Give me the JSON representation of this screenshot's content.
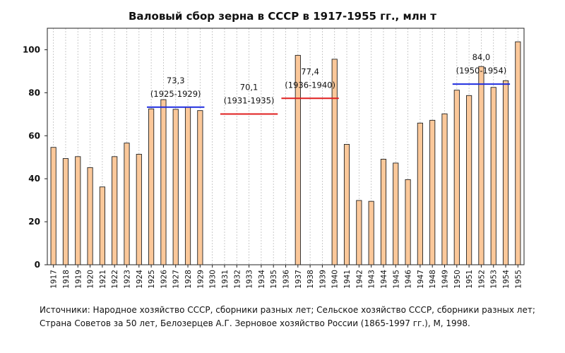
{
  "chart_data": {
    "type": "bar",
    "title": "Валовый сбор зерна в СССР в 1917-1955 гг., млн т",
    "xlabel": "",
    "ylabel": "",
    "ylim": [
      0,
      110
    ],
    "yticks": [
      0,
      20,
      40,
      60,
      80,
      100
    ],
    "grid": "vertical dashed",
    "categories": [
      "1917",
      "1918",
      "1919",
      "1920",
      "1921",
      "1922",
      "1923",
      "1924",
      "1925",
      "1926",
      "1927",
      "1928",
      "1929",
      "1930",
      "1931",
      "1932",
      "1933",
      "1934",
      "1935",
      "1936",
      "1937",
      "1938",
      "1939",
      "1940",
      "1941",
      "1942",
      "1943",
      "1944",
      "1945",
      "1946",
      "1947",
      "1948",
      "1949",
      "1950",
      "1951",
      "1952",
      "1953",
      "1954",
      "1955"
    ],
    "values": [
      54.6,
      49.4,
      50.3,
      45.2,
      36.2,
      50.3,
      56.6,
      51.4,
      72.5,
      76.8,
      72.3,
      73.3,
      71.7,
      null,
      null,
      null,
      null,
      null,
      null,
      null,
      97.4,
      null,
      null,
      95.6,
      56.0,
      29.9,
      29.5,
      49.1,
      47.3,
      39.6,
      65.9,
      67.2,
      70.2,
      81.2,
      78.7,
      92.2,
      82.5,
      85.6,
      103.7
    ],
    "bar_color": "#fbc89a",
    "averages": [
      {
        "value": 73.3,
        "from": "1925",
        "to": "1929",
        "label_value": "73,3",
        "label_period": "(1925-1929)",
        "color": "#1f2de0"
      },
      {
        "value": 70.1,
        "from": "1931",
        "to": "1935",
        "label_value": "70,1",
        "label_period": "(1931-1935)",
        "color": "#e01f1f"
      },
      {
        "value": 77.4,
        "from": "1936",
        "to": "1940",
        "label_value": "77,4",
        "label_period": "(1936-1940)",
        "color": "#e01f1f"
      },
      {
        "value": 84.0,
        "from": "1950",
        "to": "1954",
        "label_value": "84,0",
        "label_period": "(1950-1954)",
        "color": "#1f2de0"
      }
    ]
  },
  "source": {
    "line1": "Источники: Народное хозяйство СССР, сборники разных лет; Сельское хозяйство СССР, сборники разных лет;",
    "line2": "Страна Советов за 50 лет, Белозерцев А.Г. Зерновое хозяйство России (1865-1997 гг.), М, 1998."
  }
}
